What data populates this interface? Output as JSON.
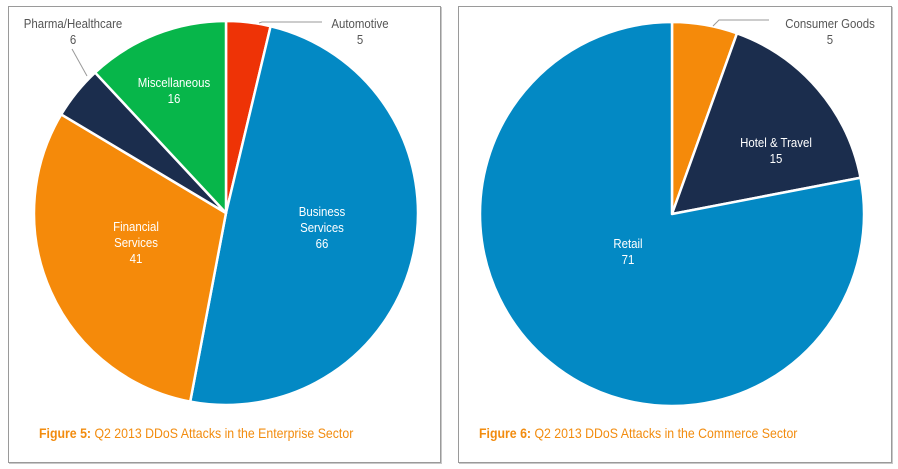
{
  "chart_data": [
    {
      "type": "pie",
      "title": "Q2 2013 DDoS Attacks in the Enterprise Sector",
      "figure_label": "Figure 5:",
      "start_angle_deg": 0,
      "direction": "clockwise",
      "slices": [
        {
          "label": "Automotive",
          "value": 5,
          "color": "#ee3306",
          "label_color": "#555555",
          "outside": true
        },
        {
          "label": "Business Services",
          "label_lines": [
            "Business",
            "Services"
          ],
          "value": 66,
          "color": "#0389c4",
          "label_color": "#ffffff",
          "outside": false
        },
        {
          "label": "Financial Services",
          "label_lines": [
            "Financial",
            "Services"
          ],
          "value": 41,
          "color": "#f58a0a",
          "label_color": "#ffffff",
          "outside": false
        },
        {
          "label": "Pharma/Healthcare",
          "value": 6,
          "color": "#1b2d4d",
          "label_color": "#555555",
          "outside": true
        },
        {
          "label": "Miscellaneous",
          "value": 16,
          "color": "#07b64a",
          "label_color": "#ffffff",
          "outside": false
        }
      ]
    },
    {
      "type": "pie",
      "title": "Q2 2013 DDoS Attacks in the Commerce Sector",
      "figure_label": "Figure 6:",
      "start_angle_deg": 0,
      "direction": "clockwise",
      "slices": [
        {
          "label": "Consumer Goods",
          "value": 5,
          "color": "#f58a0a",
          "label_color": "#555555",
          "outside": true
        },
        {
          "label": "Hotel & Travel",
          "value": 15,
          "color": "#1b2d4d",
          "label_color": "#ffffff",
          "outside": false
        },
        {
          "label": "Retail",
          "value": 71,
          "color": "#0389c4",
          "label_color": "#ffffff",
          "outside": false
        }
      ]
    }
  ],
  "captions": {
    "left": {
      "prefix": "Figure 5:",
      "text": " Q2 2013 DDoS Attacks in the Enterprise Sector"
    },
    "right": {
      "prefix": "Figure 6:",
      "text": " Q2 2013 DDoS Attacks in the Commerce Sector"
    }
  }
}
